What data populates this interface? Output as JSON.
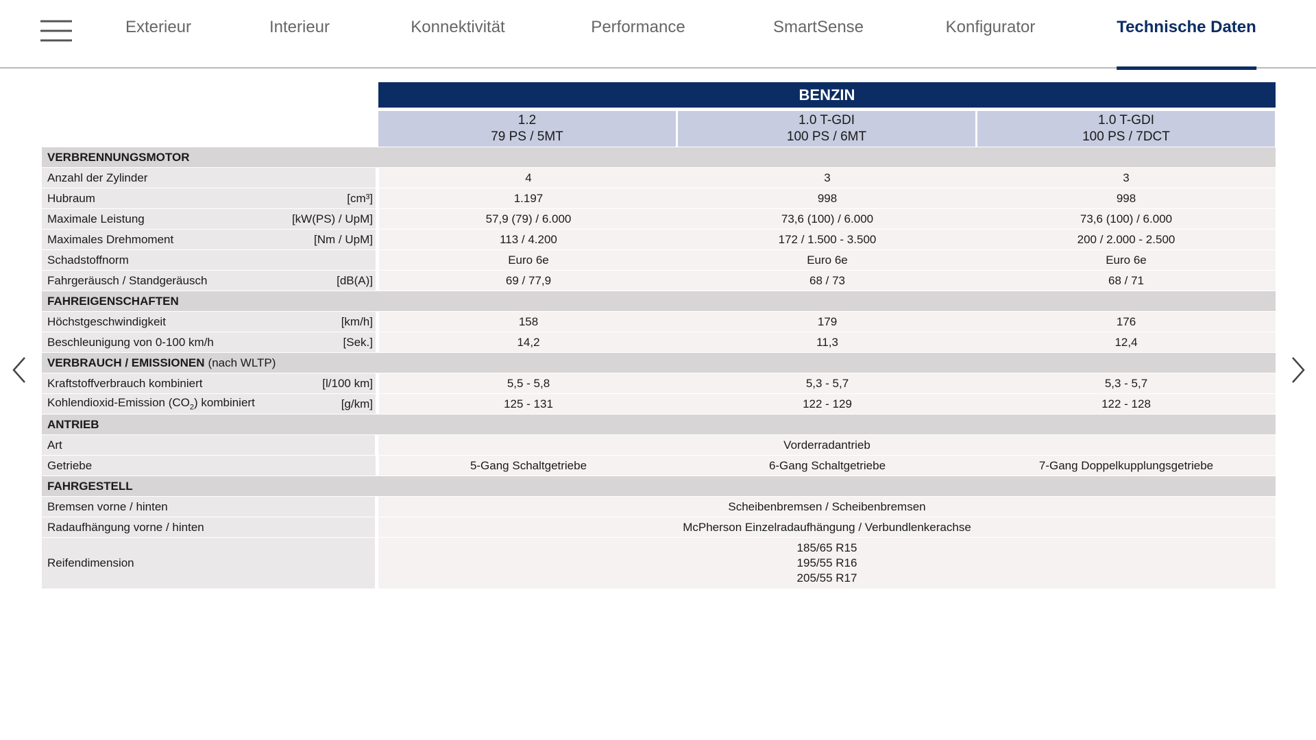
{
  "nav": {
    "items": [
      "Exterieur",
      "Interieur",
      "Konnektivität",
      "Performance",
      "SmartSense",
      "Konfigurator",
      "Technische Daten"
    ]
  },
  "table": {
    "group": "BENZIN",
    "columns": [
      [
        "1.2",
        "79 PS / 5MT"
      ],
      [
        "1.0 T-GDI",
        "100 PS / 6MT"
      ],
      [
        "1.0 T-GDI",
        "100 PS / 7DCT"
      ]
    ],
    "sections": [
      {
        "title": "VERBRENNUNGSMOTOR",
        "rows": [
          {
            "label": "Anzahl der Zylinder",
            "values": [
              "4",
              "3",
              "3"
            ]
          },
          {
            "label": "Hubraum",
            "unit": "[cm³]",
            "values": [
              "1.197",
              "998",
              "998"
            ]
          },
          {
            "label": "Maximale Leistung",
            "unit": "[kW(PS) / UpM]",
            "values": [
              "57,9 (79) / 6.000",
              "73,6 (100) / 6.000",
              "73,6 (100) / 6.000"
            ]
          },
          {
            "label": "Maximales Drehmoment",
            "unit": "[Nm / UpM]",
            "values": [
              "113 / 4.200",
              "172 / 1.500 - 3.500",
              "200 / 2.000 - 2.500"
            ]
          },
          {
            "label": "Schadstoffnorm",
            "values": [
              "Euro 6e",
              "Euro 6e",
              "Euro 6e"
            ]
          },
          {
            "label": "Fahrgeräusch / Standgeräusch",
            "unit": "[dB(A)]",
            "values": [
              "69 / 77,9",
              "68 / 73",
              "68 / 71"
            ]
          }
        ]
      },
      {
        "title": "FAHREIGENSCHAFTEN",
        "rows": [
          {
            "label": "Höchstgeschwindigkeit",
            "unit": "[km/h]",
            "values": [
              "158",
              "179",
              "176"
            ]
          },
          {
            "label": "Beschleunigung von 0-100 km/h",
            "unit": "[Sek.]",
            "values": [
              "14,2",
              "11,3",
              "12,4"
            ]
          }
        ]
      },
      {
        "title": "VERBRAUCH / EMISSIONEN",
        "note": "(nach WLTP)",
        "rows": [
          {
            "label": "Kraftstoffverbrauch kombiniert",
            "unit": "[l/100 km]",
            "values": [
              "5,5 - 5,8",
              "5,3 - 5,7",
              "5,3 - 5,7"
            ]
          },
          {
            "label": {
              "before": "Kohlendioxid-Emission (CO",
              "sub": "2",
              "after": ") kombiniert"
            },
            "unit": "[g/km]",
            "values": [
              "125 - 131",
              "122 - 129",
              "122 - 128"
            ]
          }
        ]
      },
      {
        "title": "ANTRIEB",
        "rows": [
          {
            "label": "Art",
            "values": [
              "Vorderradantrieb"
            ]
          },
          {
            "label": "Getriebe",
            "values": [
              "5-Gang Schaltgetriebe",
              "6-Gang Schaltgetriebe",
              "7-Gang Doppelkupplungsgetriebe"
            ]
          }
        ]
      },
      {
        "title": "FAHRGESTELL",
        "rows": [
          {
            "label": "Bremsen  vorne / hinten",
            "values": [
              "Scheibenbremsen / Scheibenbremsen"
            ]
          },
          {
            "label": "Radaufhängung vorne / hinten",
            "values": [
              "McPherson Einzelradaufhängung / Verbundlenkerachse"
            ]
          },
          {
            "label": "Reifendimension",
            "values": [
              [
                "185/65 R15",
                "195/55 R16",
                "205/55 R17"
              ]
            ]
          }
        ]
      }
    ]
  }
}
